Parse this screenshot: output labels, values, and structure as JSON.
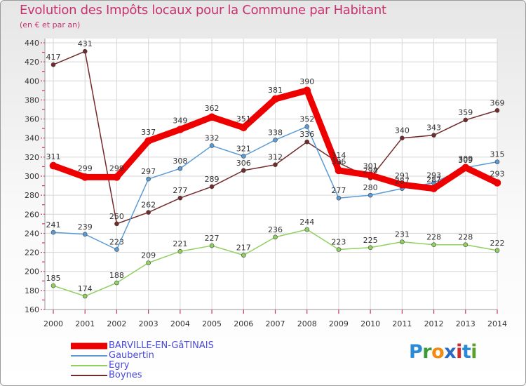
{
  "chart_data": {
    "type": "line",
    "title": "Evolution des Impôts locaux pour la Commune par Habitant",
    "subtitle": "(en € et par an)",
    "x": [
      "2000",
      "2001",
      "2002",
      "2003",
      "2004",
      "2005",
      "2006",
      "2007",
      "2008",
      "2009",
      "2010",
      "2011",
      "2012",
      "2013",
      "2014"
    ],
    "ylim": [
      160,
      440
    ],
    "yticks": [
      160,
      180,
      200,
      220,
      240,
      260,
      280,
      300,
      320,
      340,
      360,
      380,
      400,
      420,
      440
    ],
    "grid": true,
    "legend_position": "bottom-left",
    "series": [
      {
        "name": "BARVILLE-EN-GâTINAIS",
        "color": "#ee0000",
        "values": [
          311,
          299,
          299,
          337,
          349,
          362,
          351,
          381,
          390,
          306,
          301,
          291,
          287,
          309,
          293
        ]
      },
      {
        "name": "Gaubertin",
        "color": "#5a9bd5",
        "values": [
          241,
          239,
          223,
          297,
          308,
          332,
          321,
          338,
          352,
          277,
          280,
          287,
          293,
          309,
          315
        ]
      },
      {
        "name": "Egry",
        "color": "#90d060",
        "values": [
          185,
          174,
          188,
          209,
          221,
          227,
          217,
          236,
          244,
          223,
          225,
          231,
          228,
          228,
          222
        ]
      },
      {
        "name": "Boynes",
        "color": "#722a2a",
        "values": [
          417,
          431,
          250,
          262,
          277,
          289,
          306,
          312,
          336,
          314,
          298,
          340,
          343,
          359,
          369
        ]
      }
    ]
  },
  "logo": {
    "text": "Proxiti",
    "letters": [
      "P",
      "r",
      "o",
      "x",
      "i",
      "t",
      "i"
    ],
    "colors": [
      "#2a8ad4",
      "#3a9a3a",
      "#f08a10",
      "#2a6ac4",
      "#d02a2a",
      "#2a8ad4",
      "#5aa02a"
    ]
  }
}
